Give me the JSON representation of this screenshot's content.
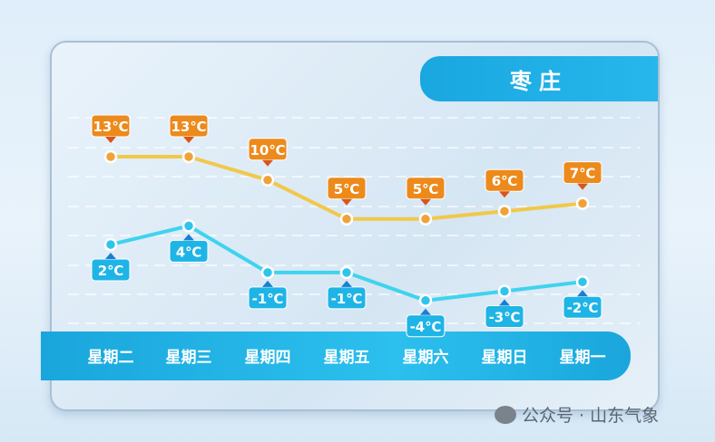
{
  "chart_data": {
    "type": "line",
    "title": "枣庄",
    "categories": [
      "星期二",
      "星期三",
      "星期四",
      "星期五",
      "星期六",
      "星期日",
      "星期一"
    ],
    "series": [
      {
        "values": [
          13,
          13,
          10,
          5,
          5,
          6,
          7
        ],
        "labels": [
          "13℃",
          "13℃",
          "10℃",
          "5℃",
          "5℃",
          "6℃",
          "7℃"
        ],
        "color": "#f1c84a",
        "label_color": "#ec8a1c"
      },
      {
        "values": [
          2,
          4,
          -1,
          -1,
          -4,
          -3,
          -2
        ],
        "labels": [
          "2℃",
          "4℃",
          "-1℃",
          "-1℃",
          "-4℃",
          "-3℃",
          "-2℃"
        ],
        "color": "#3fd3ee",
        "label_color": "#1fb4e6"
      }
    ],
    "grid": true
  },
  "watermark": "公众号 · 山东气象"
}
